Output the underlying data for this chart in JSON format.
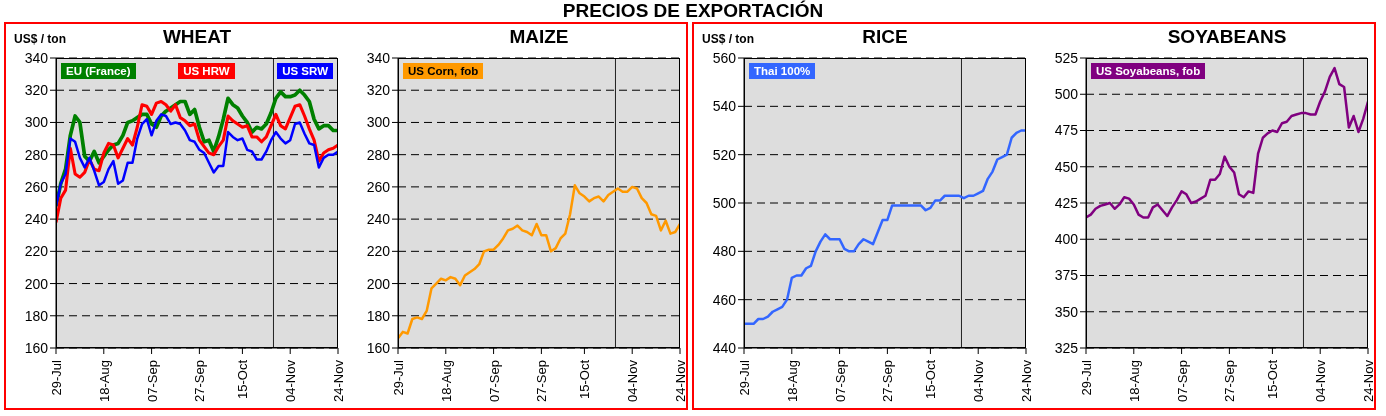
{
  "chart_data": [
    {
      "type": "line",
      "title": "WHEAT",
      "ylabel": "US$ / ton",
      "annotations": [
        "PRECIOS DE EXPORTACIÓN"
      ],
      "grid": "y",
      "legend": "top",
      "x": [
        "--07-29",
        "--07-31",
        "--08-02",
        "--08-04",
        "--08-06",
        "--08-08",
        "--08-10",
        "--08-12",
        "--08-14",
        "--08-16",
        "--08-18",
        "--08-20",
        "--08-22",
        "--08-24",
        "--08-26",
        "--08-28",
        "--08-30",
        "--09-01",
        "--09-03",
        "--09-05",
        "--09-07",
        "--09-09",
        "--09-11",
        "--09-13",
        "--09-15",
        "--09-17",
        "--09-19",
        "--09-21",
        "--09-23",
        "--09-25",
        "--09-27",
        "--09-29",
        "--10-01",
        "--10-03",
        "--10-05",
        "--10-07",
        "--10-09",
        "--10-11",
        "--10-13",
        "--10-15",
        "--10-17",
        "--10-19",
        "--10-21",
        "--10-23",
        "--10-25",
        "--10-27",
        "--10-29",
        "--10-31",
        "--11-02",
        "--11-04",
        "--11-06",
        "--11-08",
        "--11-10",
        "--11-12",
        "--11-14",
        "--11-16",
        "--11-18",
        "--11-20",
        "--11-22",
        "--11-24"
      ],
      "xlim": [
        "--07-29",
        "--11-24"
      ],
      "xticks": [
        {
          "value": "--07-29",
          "label": "29-Jul"
        },
        {
          "value": "--08-18",
          "label": "18-Aug"
        },
        {
          "value": "--09-07",
          "label": "07-Sep"
        },
        {
          "value": "--09-27",
          "label": "27-Sep"
        },
        {
          "value": "--10-15",
          "label": "15-Oct"
        },
        {
          "value": "--11-04",
          "label": "04-Nov"
        },
        {
          "value": "--11-24",
          "label": "24-Nov"
        }
      ],
      "ylim": [
        160,
        340
      ],
      "yticks": [
        160,
        180,
        200,
        220,
        240,
        260,
        280,
        300,
        320,
        340
      ],
      "ref_lines": [
        {
          "axis": "x",
          "value": "--10-28"
        }
      ],
      "series": [
        {
          "name": "EU (France)",
          "color": "#008000",
          "values": [
            248,
            262,
            271,
            292,
            304,
            300,
            279,
            276,
            282,
            275,
            279,
            283,
            286,
            287,
            292,
            300,
            301,
            303,
            305,
            305,
            299,
            297,
            304,
            307,
            309,
            311,
            313,
            313,
            305,
            308,
            297,
            288,
            289,
            282,
            291,
            302,
            315,
            311,
            309,
            304,
            300,
            294,
            297,
            296,
            299,
            306,
            315,
            319,
            316,
            316,
            317,
            320,
            317,
            313,
            302,
            296,
            298,
            298,
            295,
            295
          ]
        },
        {
          "name": "US HRW",
          "color": "#ff0000",
          "values": [
            238,
            253,
            258,
            284,
            268,
            266,
            269,
            277,
            271,
            270,
            281,
            287,
            286,
            278,
            284,
            290,
            286,
            297,
            311,
            310,
            305,
            312,
            313,
            311,
            307,
            311,
            303,
            301,
            298,
            299,
            289,
            285,
            281,
            280,
            285,
            289,
            304,
            301,
            299,
            297,
            298,
            291,
            291,
            288,
            291,
            298,
            305,
            298,
            296,
            303,
            310,
            311,
            304,
            296,
            289,
            276,
            281,
            283,
            284,
            286
          ]
        },
        {
          "name": "US SRW",
          "color": "#0000ff",
          "values": [
            248,
            262,
            268,
            290,
            288,
            278,
            272,
            278,
            270,
            261,
            263,
            271,
            276,
            262,
            264,
            275,
            275,
            290,
            299,
            302,
            292,
            301,
            305,
            304,
            299,
            300,
            299,
            295,
            289,
            288,
            283,
            281,
            275,
            269,
            273,
            273,
            294,
            291,
            289,
            290,
            283,
            282,
            277,
            277,
            282,
            289,
            294,
            290,
            287,
            289,
            299,
            300,
            293,
            287,
            286,
            272,
            278,
            280,
            280,
            282
          ]
        }
      ]
    },
    {
      "type": "line",
      "title": "MAIZE",
      "grid": "y",
      "legend": "top left",
      "x": [
        "--07-29",
        "--07-31",
        "--08-02",
        "--08-04",
        "--08-06",
        "--08-08",
        "--08-10",
        "--08-12",
        "--08-14",
        "--08-16",
        "--08-18",
        "--08-20",
        "--08-22",
        "--08-24",
        "--08-26",
        "--08-28",
        "--08-30",
        "--09-01",
        "--09-03",
        "--09-05",
        "--09-07",
        "--09-09",
        "--09-11",
        "--09-13",
        "--09-15",
        "--09-17",
        "--09-19",
        "--09-21",
        "--09-23",
        "--09-25",
        "--09-27",
        "--09-29",
        "--10-01",
        "--10-03",
        "--10-05",
        "--10-07",
        "--10-09",
        "--10-11",
        "--10-13",
        "--10-15",
        "--10-17",
        "--10-19",
        "--10-21",
        "--10-23",
        "--10-25",
        "--10-27",
        "--10-29",
        "--10-31",
        "--11-02",
        "--11-04",
        "--11-06",
        "--11-08",
        "--11-10",
        "--11-12",
        "--11-14",
        "--11-16",
        "--11-18",
        "--11-20",
        "--11-22",
        "--11-24"
      ],
      "xlim": [
        "--07-29",
        "--11-24"
      ],
      "xticks": [
        {
          "value": "--07-29",
          "label": "29-Jul"
        },
        {
          "value": "--08-18",
          "label": "18-Aug"
        },
        {
          "value": "--09-07",
          "label": "07-Sep"
        },
        {
          "value": "--09-27",
          "label": "27-Sep"
        },
        {
          "value": "--10-15",
          "label": "15-Oct"
        },
        {
          "value": "--11-04",
          "label": "04-Nov"
        },
        {
          "value": "--11-24",
          "label": "24-Nov"
        }
      ],
      "ylim": [
        160,
        340
      ],
      "yticks": [
        160,
        180,
        200,
        220,
        240,
        260,
        280,
        300,
        320,
        340
      ],
      "ref_lines": [
        {
          "axis": "x",
          "value": "--10-28"
        }
      ],
      "series": [
        {
          "name": "US Corn, fob",
          "color": "#ff9900",
          "values": [
            166,
            170,
            169,
            178,
            179,
            178,
            183,
            197,
            200,
            203,
            202,
            204,
            203,
            199,
            205,
            207,
            209,
            212,
            220,
            221,
            221,
            224,
            228,
            233,
            234,
            236,
            233,
            232,
            230,
            237,
            230,
            230,
            220,
            222,
            228,
            231,
            243,
            261,
            256,
            254,
            251,
            253,
            254,
            251,
            255,
            257,
            259,
            257,
            257,
            260,
            259,
            253,
            250,
            243,
            242,
            233,
            239,
            231,
            232,
            237
          ]
        }
      ]
    },
    {
      "type": "line",
      "title": "RICE",
      "ylabel": "US$ / ton",
      "grid": "y",
      "legend": "top left",
      "x": [
        "--07-29",
        "--07-31",
        "--08-02",
        "--08-04",
        "--08-06",
        "--08-08",
        "--08-10",
        "--08-12",
        "--08-14",
        "--08-16",
        "--08-18",
        "--08-20",
        "--08-22",
        "--08-24",
        "--08-26",
        "--08-28",
        "--08-30",
        "--09-01",
        "--09-03",
        "--09-05",
        "--09-07",
        "--09-09",
        "--09-11",
        "--09-13",
        "--09-15",
        "--09-17",
        "--09-19",
        "--09-21",
        "--09-23",
        "--09-25",
        "--09-27",
        "--09-29",
        "--10-01",
        "--10-03",
        "--10-05",
        "--10-07",
        "--10-09",
        "--10-11",
        "--10-13",
        "--10-15",
        "--10-17",
        "--10-19",
        "--10-21",
        "--10-23",
        "--10-25",
        "--10-27",
        "--10-29",
        "--10-31",
        "--11-02",
        "--11-04",
        "--11-06",
        "--11-08",
        "--11-10",
        "--11-12",
        "--11-14",
        "--11-16",
        "--11-18",
        "--11-20",
        "--11-22",
        "--11-24"
      ],
      "xlim": [
        "--07-29",
        "--11-24"
      ],
      "xticks": [
        {
          "value": "--07-29",
          "label": "29-Jul"
        },
        {
          "value": "--08-18",
          "label": "18-Aug"
        },
        {
          "value": "--09-07",
          "label": "07-Sep"
        },
        {
          "value": "--09-27",
          "label": "27-Sep"
        },
        {
          "value": "--10-15",
          "label": "15-Oct"
        },
        {
          "value": "--11-04",
          "label": "04-Nov"
        },
        {
          "value": "--11-24",
          "label": "24-Nov"
        }
      ],
      "ylim": [
        440,
        560
      ],
      "yticks": [
        440,
        460,
        480,
        500,
        520,
        540,
        560
      ],
      "ref_lines": [
        {
          "axis": "x",
          "value": "--10-28"
        }
      ],
      "series": [
        {
          "name": "Thai 100%",
          "color": "#3366ff",
          "values": [
            450,
            450,
            450,
            452,
            452,
            453,
            455,
            456,
            457,
            460,
            469,
            470,
            470,
            473,
            474,
            480,
            484,
            487,
            485,
            485,
            485,
            481,
            480,
            480,
            483,
            485,
            484,
            483,
            488,
            493,
            493,
            499,
            499,
            499,
            499,
            499,
            499,
            499,
            497,
            498,
            501,
            501,
            503,
            503,
            503,
            503,
            502,
            503,
            503,
            504,
            505,
            510,
            513,
            518,
            519,
            520,
            527,
            529,
            530,
            530
          ]
        }
      ]
    },
    {
      "type": "line",
      "title": "SOYABEANS",
      "grid": "y",
      "legend": "top left",
      "x": [
        "--07-29",
        "--07-31",
        "--08-02",
        "--08-04",
        "--08-06",
        "--08-08",
        "--08-10",
        "--08-12",
        "--08-14",
        "--08-16",
        "--08-18",
        "--08-20",
        "--08-22",
        "--08-24",
        "--08-26",
        "--08-28",
        "--08-30",
        "--09-01",
        "--09-03",
        "--09-05",
        "--09-07",
        "--09-09",
        "--09-11",
        "--09-13",
        "--09-15",
        "--09-17",
        "--09-19",
        "--09-21",
        "--09-23",
        "--09-25",
        "--09-27",
        "--09-29",
        "--10-01",
        "--10-03",
        "--10-05",
        "--10-07",
        "--10-09",
        "--10-11",
        "--10-13",
        "--10-15",
        "--10-17",
        "--10-19",
        "--10-21",
        "--10-23",
        "--10-25",
        "--10-27",
        "--10-29",
        "--10-31",
        "--11-02",
        "--11-04",
        "--11-06",
        "--11-08",
        "--11-10",
        "--11-12",
        "--11-14",
        "--11-16",
        "--11-18",
        "--11-20",
        "--11-22",
        "--11-24"
      ],
      "xlim": [
        "--07-29",
        "--11-24"
      ],
      "xticks": [
        {
          "value": "--07-29",
          "label": "29-Jul"
        },
        {
          "value": "--08-18",
          "label": "18-Aug"
        },
        {
          "value": "--09-07",
          "label": "07-Sep"
        },
        {
          "value": "--09-27",
          "label": "27-Sep"
        },
        {
          "value": "--10-15",
          "label": "15-Oct"
        },
        {
          "value": "--11-04",
          "label": "04-Nov"
        },
        {
          "value": "--11-24",
          "label": "24-Nov"
        }
      ],
      "ylim": [
        325,
        525
      ],
      "yticks": [
        325,
        350,
        375,
        400,
        425,
        450,
        475,
        500,
        525
      ],
      "ref_lines": [
        {
          "axis": "x",
          "value": "--10-28"
        }
      ],
      "series": [
        {
          "name": "US Soyabeans, fob",
          "color": "#800080",
          "values": [
            415,
            417,
            421,
            423,
            424,
            425,
            421,
            424,
            429,
            428,
            424,
            417,
            415,
            415,
            422,
            424,
            420,
            416,
            422,
            427,
            433,
            431,
            425,
            426,
            428,
            430,
            441,
            441,
            445,
            457,
            450,
            446,
            431,
            429,
            433,
            432,
            459,
            470,
            473,
            475,
            474,
            480,
            481,
            485,
            486,
            487,
            487,
            486,
            486,
            495,
            502,
            512,
            518,
            507,
            505,
            477,
            485,
            474,
            483,
            495
          ]
        }
      ]
    }
  ]
}
